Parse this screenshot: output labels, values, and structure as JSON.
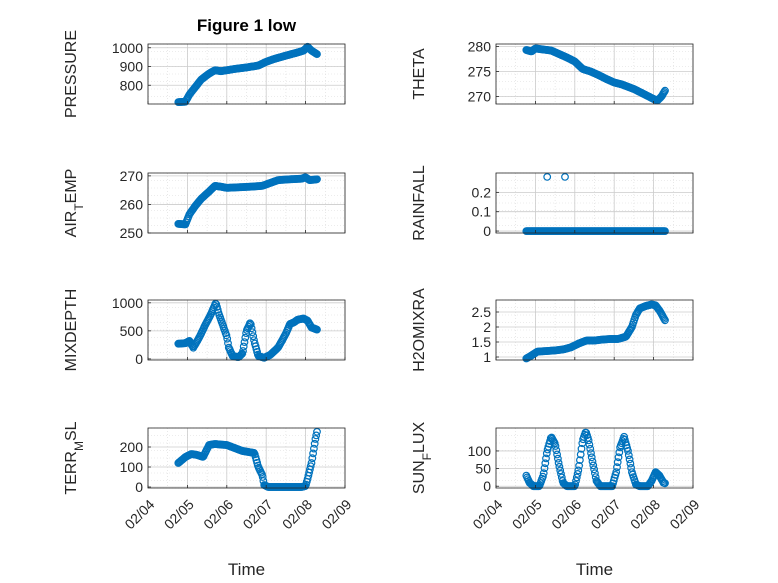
{
  "figure": {
    "title": "Figure 1 low"
  },
  "chart_data": [
    {
      "type": "scatter",
      "ylabel": "PRESSURE",
      "title": "Figure 1 low",
      "xlim": [
        0,
        5
      ],
      "ylim": [
        700,
        1020
      ],
      "yticks": [
        800,
        900,
        1000
      ],
      "xticks": [],
      "grid": true,
      "color": "#0072BD",
      "curve": [
        [
          0.77,
          710
        ],
        [
          0.95,
          712
        ],
        [
          1.05,
          750
        ],
        [
          1.2,
          790
        ],
        [
          1.35,
          830
        ],
        [
          1.55,
          862
        ],
        [
          1.7,
          880
        ],
        [
          1.85,
          875
        ],
        [
          2.0,
          880
        ],
        [
          2.2,
          887
        ],
        [
          2.5,
          895
        ],
        [
          2.8,
          905
        ],
        [
          3.0,
          925
        ],
        [
          3.2,
          940
        ],
        [
          3.5,
          958
        ],
        [
          3.8,
          975
        ],
        [
          3.95,
          985
        ],
        [
          4.05,
          1005
        ],
        [
          4.15,
          985
        ],
        [
          4.3,
          965
        ]
      ]
    },
    {
      "type": "scatter",
      "ylabel": "THETA",
      "xlim": [
        0,
        5
      ],
      "ylim": [
        268.5,
        280.5
      ],
      "yticks": [
        270,
        275,
        280
      ],
      "xticks": [],
      "grid": true,
      "color": "#0072BD",
      "curve": [
        [
          0.77,
          279.3
        ],
        [
          0.9,
          279.0
        ],
        [
          1.0,
          279.6
        ],
        [
          1.2,
          279.4
        ],
        [
          1.4,
          279.2
        ],
        [
          1.6,
          278.5
        ],
        [
          1.8,
          277.8
        ],
        [
          2.0,
          277.0
        ],
        [
          2.2,
          275.5
        ],
        [
          2.4,
          275.0
        ],
        [
          2.6,
          274.3
        ],
        [
          2.8,
          273.5
        ],
        [
          3.0,
          272.8
        ],
        [
          3.2,
          272.4
        ],
        [
          3.5,
          271.5
        ],
        [
          3.8,
          270.3
        ],
        [
          4.0,
          269.5
        ],
        [
          4.1,
          269.2
        ],
        [
          4.2,
          270.0
        ],
        [
          4.3,
          271.3
        ]
      ]
    },
    {
      "type": "scatter",
      "ylabel": "AIR_TEMP",
      "xlim": [
        0,
        5
      ],
      "ylim": [
        250,
        271
      ],
      "yticks": [
        250,
        260,
        270
      ],
      "xticks": [],
      "grid": true,
      "color": "#0072BD",
      "curve": [
        [
          0.77,
          253.2
        ],
        [
          0.95,
          253.0
        ],
        [
          1.05,
          256.5
        ],
        [
          1.2,
          259.5
        ],
        [
          1.35,
          262.0
        ],
        [
          1.55,
          264.5
        ],
        [
          1.7,
          266.5
        ],
        [
          1.85,
          266.2
        ],
        [
          2.0,
          265.8
        ],
        [
          2.3,
          266.0
        ],
        [
          2.6,
          266.2
        ],
        [
          2.9,
          266.5
        ],
        [
          3.1,
          267.5
        ],
        [
          3.3,
          268.5
        ],
        [
          3.6,
          268.8
        ],
        [
          3.9,
          269.0
        ],
        [
          4.0,
          269.5
        ],
        [
          4.1,
          268.5
        ],
        [
          4.3,
          268.8
        ]
      ]
    },
    {
      "type": "scatter",
      "ylabel": "RAINFALL",
      "xlim": [
        0,
        5
      ],
      "ylim": [
        -0.01,
        0.3
      ],
      "yticks": [
        0,
        0.1,
        0.2
      ],
      "xticks": [],
      "grid": true,
      "color": "#0072BD",
      "curve": [
        [
          0.77,
          0
        ],
        [
          4.3,
          0
        ]
      ],
      "extra_points": [
        [
          1.3,
          0.28
        ],
        [
          1.75,
          0.28
        ]
      ]
    },
    {
      "type": "scatter",
      "ylabel": "MIXDEPTH",
      "xlim": [
        0,
        5
      ],
      "ylim": [
        -20,
        1050
      ],
      "yticks": [
        0,
        500,
        1000
      ],
      "xticks": [],
      "grid": true,
      "color": "#0072BD",
      "curve": [
        [
          0.77,
          270
        ],
        [
          0.95,
          280
        ],
        [
          1.05,
          320
        ],
        [
          1.15,
          200
        ],
        [
          1.3,
          380
        ],
        [
          1.45,
          600
        ],
        [
          1.6,
          800
        ],
        [
          1.72,
          1000
        ],
        [
          1.8,
          800
        ],
        [
          1.9,
          600
        ],
        [
          2.0,
          400
        ],
        [
          2.05,
          200
        ],
        [
          2.15,
          50
        ],
        [
          2.3,
          30
        ],
        [
          2.4,
          100
        ],
        [
          2.5,
          500
        ],
        [
          2.6,
          650
        ],
        [
          2.7,
          300
        ],
        [
          2.8,
          50
        ],
        [
          2.95,
          20
        ],
        [
          3.1,
          70
        ],
        [
          3.3,
          200
        ],
        [
          3.5,
          450
        ],
        [
          3.6,
          620
        ],
        [
          3.7,
          650
        ],
        [
          3.8,
          700
        ],
        [
          3.95,
          720
        ],
        [
          4.05,
          680
        ],
        [
          4.15,
          560
        ],
        [
          4.3,
          520
        ]
      ]
    },
    {
      "type": "scatter",
      "ylabel": "H2OMIXRA",
      "xlim": [
        0,
        5
      ],
      "ylim": [
        0.9,
        2.9
      ],
      "yticks": [
        1,
        1.5,
        2,
        2.5
      ],
      "xticks": [],
      "grid": true,
      "color": "#0072BD",
      "curve": [
        [
          0.77,
          0.95
        ],
        [
          0.9,
          1.05
        ],
        [
          1.05,
          1.18
        ],
        [
          1.3,
          1.2
        ],
        [
          1.5,
          1.22
        ],
        [
          1.7,
          1.25
        ],
        [
          1.9,
          1.32
        ],
        [
          2.1,
          1.45
        ],
        [
          2.3,
          1.55
        ],
        [
          2.5,
          1.55
        ],
        [
          2.7,
          1.58
        ],
        [
          2.9,
          1.6
        ],
        [
          3.1,
          1.6
        ],
        [
          3.3,
          1.68
        ],
        [
          3.45,
          2.0
        ],
        [
          3.55,
          2.4
        ],
        [
          3.65,
          2.62
        ],
        [
          3.8,
          2.7
        ],
        [
          3.95,
          2.75
        ],
        [
          4.05,
          2.72
        ],
        [
          4.15,
          2.55
        ],
        [
          4.3,
          2.2
        ]
      ]
    },
    {
      "type": "scatter",
      "ylabel": "TERR_MSL",
      "xlim": [
        0,
        5
      ],
      "ylim": [
        -5,
        295
      ],
      "yticks": [
        0,
        100,
        200
      ],
      "xticks": [
        "02/04",
        "02/05",
        "02/06",
        "02/07",
        "02/08",
        "02/09"
      ],
      "grid": true,
      "color": "#0072BD",
      "xlabel": "Time",
      "curve": [
        [
          0.77,
          120
        ],
        [
          0.95,
          150
        ],
        [
          1.1,
          165
        ],
        [
          1.25,
          160
        ],
        [
          1.4,
          150
        ],
        [
          1.55,
          210
        ],
        [
          1.7,
          215
        ],
        [
          1.85,
          212
        ],
        [
          2.0,
          210
        ],
        [
          2.2,
          195
        ],
        [
          2.4,
          180
        ],
        [
          2.55,
          175
        ],
        [
          2.7,
          170
        ],
        [
          2.8,
          100
        ],
        [
          2.9,
          60
        ],
        [
          2.95,
          10
        ],
        [
          3.05,
          0
        ],
        [
          3.3,
          0
        ],
        [
          3.6,
          0
        ],
        [
          3.9,
          0
        ],
        [
          4.0,
          5
        ],
        [
          4.05,
          40
        ],
        [
          4.15,
          120
        ],
        [
          4.25,
          240
        ],
        [
          4.3,
          285
        ]
      ]
    },
    {
      "type": "scatter",
      "ylabel": "SUN_FLUX",
      "xlim": [
        0,
        5
      ],
      "ylim": [
        -5,
        165
      ],
      "yticks": [
        0,
        50,
        100
      ],
      "xticks": [
        "02/04",
        "02/05",
        "02/06",
        "02/07",
        "02/08",
        "02/09"
      ],
      "grid": true,
      "color": "#0072BD",
      "xlabel": "Time",
      "curve": [
        [
          0.77,
          30
        ],
        [
          0.85,
          10
        ],
        [
          0.95,
          0
        ],
        [
          1.1,
          0
        ],
        [
          1.2,
          30
        ],
        [
          1.3,
          100
        ],
        [
          1.4,
          140
        ],
        [
          1.5,
          120
        ],
        [
          1.6,
          60
        ],
        [
          1.7,
          10
        ],
        [
          1.8,
          0
        ],
        [
          2.0,
          0
        ],
        [
          2.1,
          50
        ],
        [
          2.2,
          130
        ],
        [
          2.28,
          155
        ],
        [
          2.35,
          130
        ],
        [
          2.45,
          70
        ],
        [
          2.55,
          15
        ],
        [
          2.65,
          0
        ],
        [
          2.95,
          0
        ],
        [
          3.05,
          40
        ],
        [
          3.15,
          110
        ],
        [
          3.25,
          140
        ],
        [
          3.35,
          100
        ],
        [
          3.45,
          40
        ],
        [
          3.55,
          5
        ],
        [
          3.65,
          0
        ],
        [
          3.85,
          0
        ],
        [
          3.95,
          15
        ],
        [
          4.05,
          40
        ],
        [
          4.15,
          30
        ],
        [
          4.25,
          10
        ],
        [
          4.3,
          8
        ]
      ]
    }
  ]
}
